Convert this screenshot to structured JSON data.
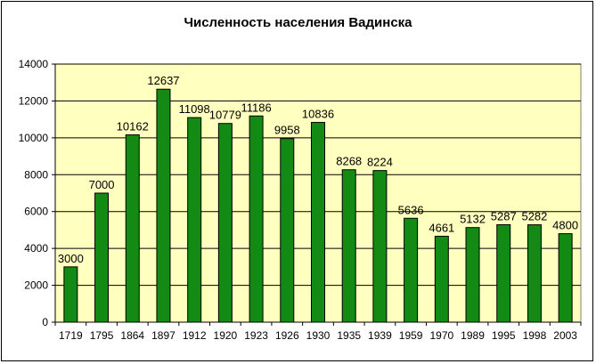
{
  "chart_data": {
    "type": "bar",
    "title": "Численность населения Вадинска",
    "xlabel": "",
    "ylabel": "",
    "categories": [
      "1719",
      "1795",
      "1864",
      "1897",
      "1912",
      "1920",
      "1923",
      "1926",
      "1930",
      "1935",
      "1939",
      "1959",
      "1970",
      "1989",
      "1995",
      "1998",
      "2003"
    ],
    "values": [
      3000,
      7000,
      10162,
      12637,
      11098,
      10779,
      11186,
      9958,
      10836,
      8268,
      8224,
      5636,
      4661,
      5132,
      5287,
      5282,
      4800
    ],
    "ylim": [
      0,
      14000
    ],
    "yticks": [
      0,
      2000,
      4000,
      6000,
      8000,
      10000,
      12000,
      14000
    ],
    "grid": true,
    "legend": "none",
    "colors": {
      "plot_background": "#ffffc0",
      "bar_fill": "#138a13",
      "bar_border": "#000000",
      "gridline": "#000000"
    }
  }
}
